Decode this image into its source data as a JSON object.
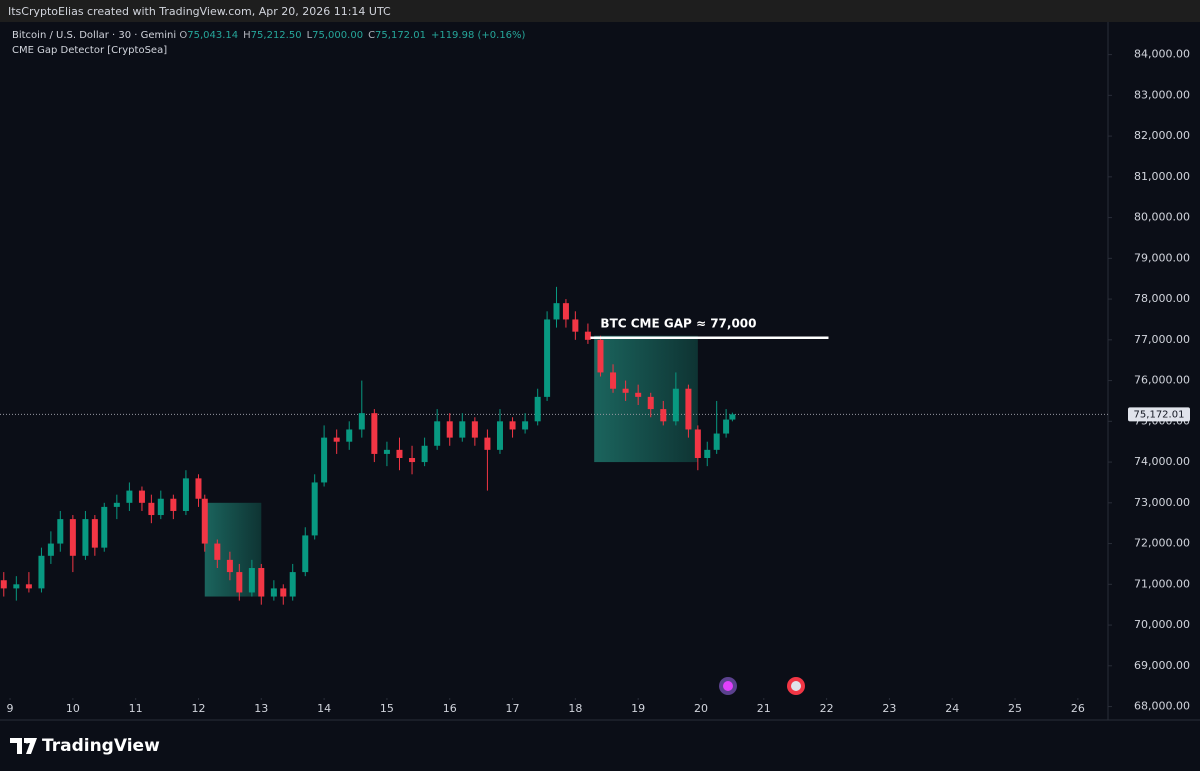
{
  "header": {
    "text": "ItsCryptoElias created with TradingView.com, Apr 20, 2026 11:14 UTC"
  },
  "footer": {
    "brand": "TradingView"
  },
  "chart_data": {
    "type": "candlestick",
    "title": "Bitcoin / U.S. Dollar · 30 · Gemini",
    "ohlc_legend": [
      {
        "key": "O",
        "value": "75,043.14"
      },
      {
        "key": "H",
        "value": "75,212.50"
      },
      {
        "key": "L",
        "value": "75,000.00"
      },
      {
        "key": "C",
        "value": "75,172.01"
      }
    ],
    "change": "+119.98 (+0.16%)",
    "indicator": "CME Gap Detector [CryptoSea]",
    "up_color": "#089981",
    "down_color": "#f23645",
    "grid": false,
    "x": [
      8.9,
      9.1,
      9.3,
      9.5,
      9.65,
      9.8,
      10.0,
      10.2,
      10.35,
      10.5,
      10.7,
      10.9,
      11.1,
      11.25,
      11.4,
      11.6,
      11.8,
      12.0,
      12.1,
      12.3,
      12.5,
      12.65,
      12.85,
      13.0,
      13.2,
      13.35,
      13.5,
      13.7,
      13.85,
      14.0,
      14.2,
      14.4,
      14.6,
      14.8,
      15.0,
      15.2,
      15.4,
      15.6,
      15.8,
      16.0,
      16.2,
      16.4,
      16.6,
      16.8,
      17.0,
      17.2,
      17.4,
      17.55,
      17.7,
      17.85,
      18.0,
      18.2,
      18.4,
      18.6,
      18.8,
      19.0,
      19.2,
      19.4,
      19.6,
      19.8,
      19.95,
      20.1,
      20.25,
      20.4,
      20.5
    ],
    "open": [
      71100,
      70900,
      71000,
      70900,
      71700,
      72000,
      72600,
      71700,
      72600,
      71900,
      72900,
      73000,
      73300,
      73000,
      72700,
      73100,
      72800,
      73600,
      73100,
      72000,
      71600,
      71300,
      70800,
      71400,
      70700,
      70900,
      70700,
      71300,
      72200,
      73500,
      74600,
      74500,
      74800,
      75200,
      74200,
      74300,
      74100,
      74000,
      74400,
      75000,
      74600,
      75000,
      74600,
      74300,
      75000,
      74800,
      75000,
      75600,
      77500,
      77900,
      77500,
      77200,
      77000,
      76200,
      75800,
      75700,
      75600,
      75300,
      75000,
      75800,
      74800,
      74100,
      74300,
      74700,
      75043.14
    ],
    "high": [
      71300,
      71200,
      71300,
      71900,
      72300,
      72800,
      72700,
      72800,
      72700,
      73000,
      73200,
      73500,
      73400,
      73200,
      73300,
      73200,
      73800,
      73700,
      73200,
      72100,
      71800,
      71500,
      71600,
      71500,
      71100,
      71000,
      71500,
      72400,
      73700,
      74900,
      74800,
      75000,
      76000,
      75300,
      74500,
      74600,
      74400,
      74600,
      75300,
      75200,
      75200,
      75100,
      74800,
      75300,
      75100,
      75200,
      75800,
      77700,
      78300,
      78000,
      77700,
      77400,
      77100,
      76400,
      76000,
      75900,
      75700,
      75500,
      76200,
      75900,
      74900,
      74500,
      75500,
      75300,
      75212.5
    ],
    "low": [
      70700,
      70600,
      70800,
      70800,
      71500,
      71800,
      71300,
      71600,
      71700,
      71800,
      72600,
      72800,
      72800,
      72500,
      72600,
      72600,
      72700,
      72900,
      71800,
      71400,
      71100,
      70600,
      70700,
      70500,
      70600,
      70500,
      70600,
      71200,
      72100,
      73400,
      74200,
      74300,
      74600,
      74000,
      73900,
      73800,
      73700,
      73900,
      74300,
      74400,
      74500,
      74400,
      73300,
      74200,
      74600,
      74700,
      74900,
      75500,
      77300,
      77300,
      77000,
      76900,
      76100,
      75700,
      75500,
      75400,
      75100,
      74900,
      74900,
      74600,
      73800,
      73900,
      74200,
      74600,
      75000
    ],
    "close": [
      70900,
      71000,
      70900,
      71700,
      72000,
      72600,
      71700,
      72600,
      71900,
      72900,
      73000,
      73300,
      73000,
      72700,
      73100,
      72800,
      73600,
      73100,
      72000,
      71600,
      71300,
      70800,
      71400,
      70700,
      70900,
      70700,
      71300,
      72200,
      73500,
      74600,
      74500,
      74800,
      75200,
      74200,
      74300,
      74100,
      74000,
      74400,
      75000,
      74600,
      75000,
      74600,
      74300,
      75000,
      74800,
      75000,
      75600,
      77500,
      77900,
      77500,
      77200,
      77000,
      76200,
      75800,
      75700,
      75600,
      75300,
      75000,
      75800,
      74800,
      74100,
      74300,
      74700,
      75043.14,
      75172.01
    ],
    "gaps": [
      {
        "x0": 12.1,
        "x1": 13.0,
        "top": 73000,
        "bottom": 70700
      },
      {
        "x0": 18.3,
        "x1": 19.95,
        "top": 77100,
        "bottom": 74000
      }
    ],
    "annotation": {
      "text": "BTC CME GAP ≈ 77,000",
      "x0": 18.24,
      "x1": 22.03,
      "value": 77050
    },
    "last_price": {
      "value": 75172.01,
      "label": "75,172.01"
    },
    "xlim": [
      8.84,
      26.48
    ],
    "xticks": [
      9,
      10,
      11,
      12,
      13,
      14,
      15,
      16,
      17,
      18,
      19,
      20,
      21,
      22,
      23,
      24,
      25,
      26
    ],
    "ylim": [
      67670,
      84800
    ],
    "yticks": [
      {
        "value": 68000,
        "label": "68,000.00"
      },
      {
        "value": 69000,
        "label": "69,000.00"
      },
      {
        "value": 70000,
        "label": "70,000.00"
      },
      {
        "value": 71000,
        "label": "71,000.00"
      },
      {
        "value": 72000,
        "label": "72,000.00"
      },
      {
        "value": 73000,
        "label": "73,000.00"
      },
      {
        "value": 74000,
        "label": "74,000.00"
      },
      {
        "value": 75000,
        "label": "75,000.00"
      },
      {
        "value": 76000,
        "label": "76,000.00"
      },
      {
        "value": 77000,
        "label": "77,000.00"
      },
      {
        "value": 78000,
        "label": "78,000.00"
      },
      {
        "value": 79000,
        "label": "79,000.00"
      },
      {
        "value": 80000,
        "label": "80,000.00"
      },
      {
        "value": 81000,
        "label": "81,000.00"
      },
      {
        "value": 82000,
        "label": "82,000.00"
      },
      {
        "value": 83000,
        "label": "83,000.00"
      },
      {
        "value": 84000,
        "label": "84,000.00"
      }
    ]
  }
}
